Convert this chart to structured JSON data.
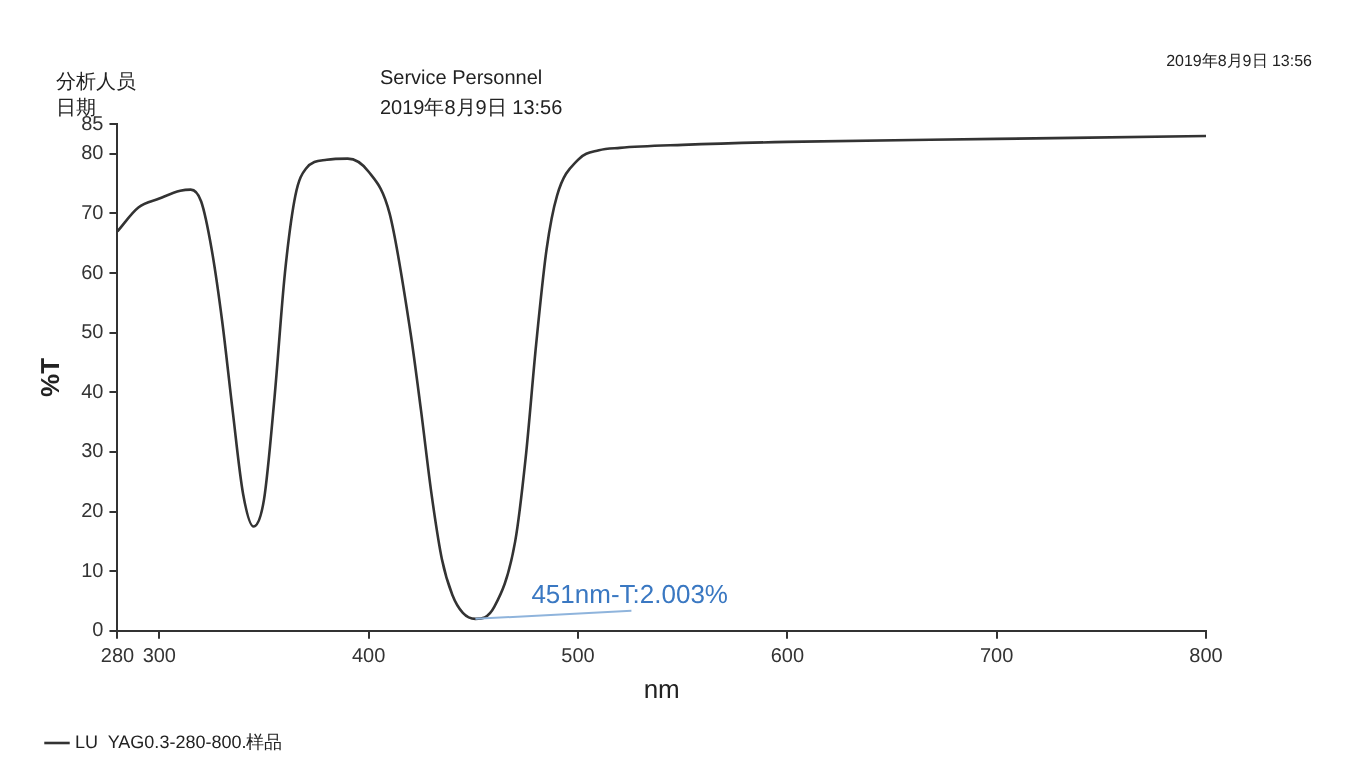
{
  "chart_data": {
    "type": "line",
    "xlabel": "nm",
    "ylabel": "%T",
    "xlim": [
      280,
      800
    ],
    "xticks": [
      280,
      300,
      400,
      500,
      600,
      700,
      800
    ],
    "ylim": [
      0,
      85
    ],
    "yticks": [
      0,
      10,
      20,
      30,
      40,
      50,
      60,
      70,
      80,
      85
    ],
    "grid": false,
    "legend": "bottom",
    "marker": "none",
    "line_style": "solid",
    "series": [
      {
        "name": "LU  YAG0.3-280-800.样品",
        "color": "#333333",
        "x": [
          280,
          290,
          300,
          310,
          315,
          320,
          325,
          330,
          335,
          340,
          345,
          350,
          355,
          360,
          365,
          370,
          380,
          390,
          400,
          410,
          420,
          425,
          430,
          435,
          440,
          445,
          451,
          460,
          470,
          475,
          480,
          485,
          490,
          500,
          510,
          520,
          550,
          600,
          700,
          800
        ],
        "values": [
          67,
          71,
          72.5,
          73.8,
          74,
          72,
          64,
          52,
          37,
          23,
          17.5,
          22,
          39,
          60,
          73,
          77.5,
          79,
          79.2,
          77,
          70,
          50,
          37,
          23,
          12,
          6,
          3,
          2.003,
          4,
          15,
          29,
          48,
          64,
          73,
          79,
          80.6,
          81,
          81.5,
          82,
          82.5,
          83
        ]
      }
    ],
    "annotations": [
      "分析人员",
      "日期",
      "Service Personnel",
      "2019年8月9日 13:56",
      "2019年8月9日 13:56",
      {
        "text": "451nm-T:2.003%",
        "x": 451,
        "y": 2.003
      }
    ]
  }
}
